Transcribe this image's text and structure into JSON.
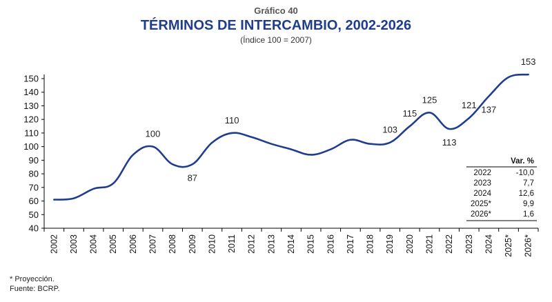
{
  "header": {
    "supertitle": "Gráfico 40",
    "title": "TÉRMINOS DE INTERCAMBIO, 2002-2026",
    "subtitle": "(Índice 100 = 2007)"
  },
  "chart_data": {
    "type": "line",
    "x": [
      "2002",
      "2003",
      "2004",
      "2005",
      "2006",
      "2007",
      "2008",
      "2009",
      "2010",
      "2011",
      "2012",
      "2013",
      "2014",
      "2015",
      "2016",
      "2017",
      "2018",
      "2019",
      "2020",
      "2021",
      "2022",
      "2023",
      "2024",
      "2025*",
      "2026*"
    ],
    "values": [
      61,
      62,
      69,
      73,
      94,
      100,
      87,
      87,
      103,
      110,
      107,
      102,
      98,
      94,
      98,
      105,
      102,
      103,
      115,
      125,
      113,
      121,
      137,
      151,
      153
    ],
    "data_labels": [
      {
        "x": "2007",
        "text": "100",
        "pos": "above"
      },
      {
        "x": "2009",
        "text": "87",
        "pos": "below"
      },
      {
        "x": "2011",
        "text": "110",
        "pos": "above"
      },
      {
        "x": "2019",
        "text": "103",
        "pos": "above"
      },
      {
        "x": "2020",
        "text": "115",
        "pos": "above"
      },
      {
        "x": "2021",
        "text": "125",
        "pos": "above"
      },
      {
        "x": "2022",
        "text": "113",
        "pos": "below"
      },
      {
        "x": "2023",
        "text": "121",
        "pos": "above"
      },
      {
        "x": "2024",
        "text": "137",
        "pos": "below"
      },
      {
        "x": "2026*",
        "text": "153",
        "pos": "above"
      }
    ],
    "yticks": [
      40,
      50,
      60,
      70,
      80,
      90,
      100,
      110,
      120,
      130,
      140,
      150
    ],
    "ylim": [
      40,
      155
    ],
    "grid": false,
    "line_color": "#1f3c8f",
    "table": {
      "header": "Var. %",
      "rows": [
        {
          "year": "2022",
          "value": "-10,0"
        },
        {
          "year": "2023",
          "value": "7,7"
        },
        {
          "year": "2024",
          "value": "12,6"
        },
        {
          "year": "2025*",
          "value": "9,9"
        },
        {
          "year": "2026*",
          "value": "1,6"
        }
      ]
    }
  },
  "notes": {
    "projection": "* Proyección.",
    "source": "Fuente: BCRP."
  }
}
